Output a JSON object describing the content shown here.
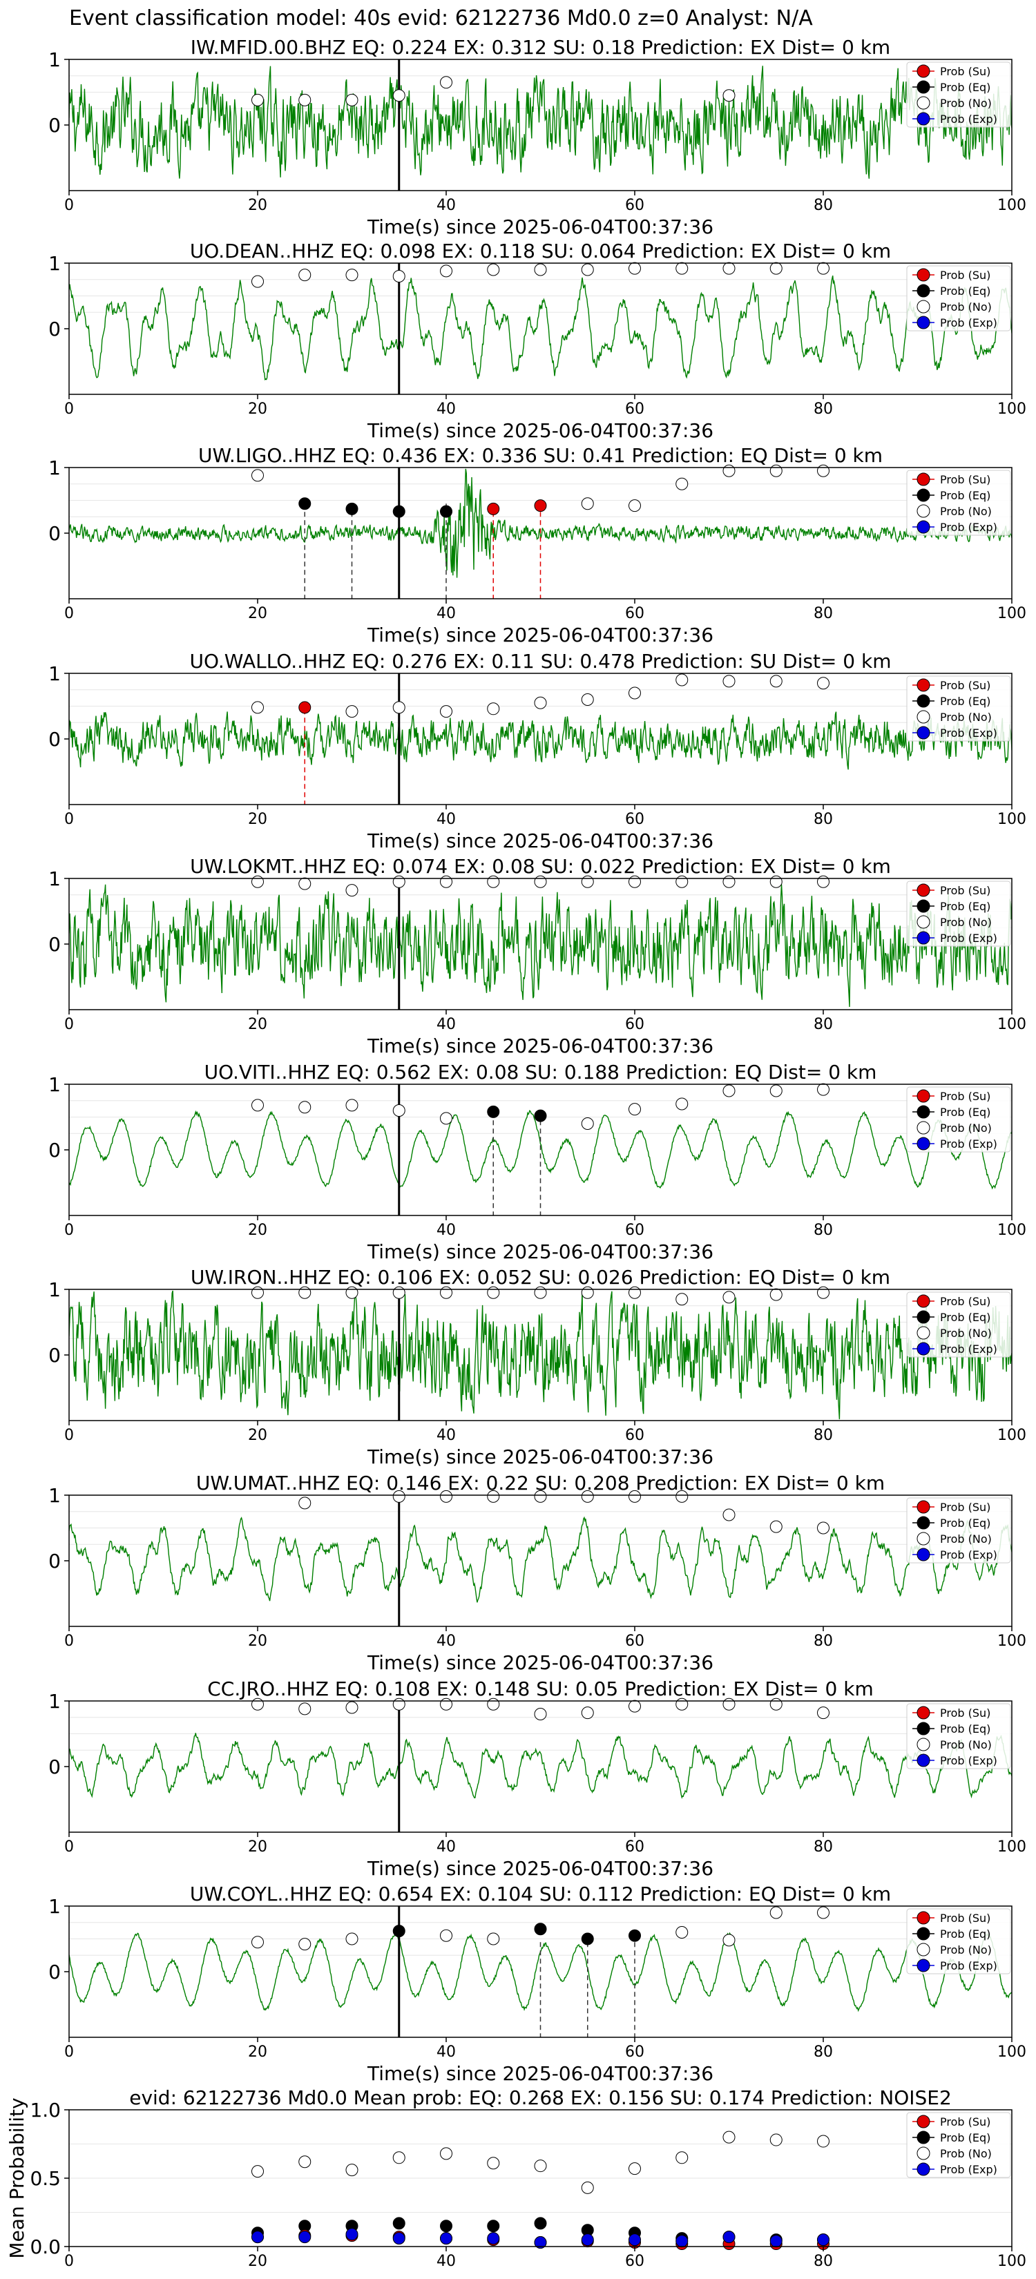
{
  "figure_title": "Event classification model: 40s evid: 62122736 Md0.0 z=0 Analyst: N/A",
  "colors": {
    "trace": "#008000",
    "su": "#e00000",
    "eq": "#000000",
    "no": "#ffffff",
    "exp": "#0000e0",
    "event_line": "#000000"
  },
  "legend": [
    "Prob (Su)",
    "Prob (Eq)",
    "Prob (No)",
    "Prob (Exp)"
  ],
  "x_ticks": [
    "0",
    "20",
    "40",
    "60",
    "80",
    "100"
  ],
  "chart_data": [
    {
      "type": "line",
      "station": "IW.MFID.00.BHZ",
      "title": "IW.MFID.00.BHZ   EQ: 0.224  EX: 0.312  SU: 0.18   Prediction: EX    Dist= 0 km",
      "xlabel": "Time(s) since 2025-06-04T00:37:36",
      "xlim": [
        0,
        100
      ],
      "ylim": [
        -1,
        1
      ],
      "y_ticks": [
        "1",
        "0"
      ],
      "amp": 0.55,
      "style": "noisy",
      "event_time": 35,
      "series": [
        {
          "name": "Prob (No)",
          "x": [
            20,
            25,
            30,
            35,
            40,
            70
          ],
          "y": [
            0.38,
            0.38,
            0.38,
            0.45,
            0.65,
            0.45
          ]
        }
      ],
      "eq_marks": [],
      "su_marks": []
    },
    {
      "type": "line",
      "station": "UO.DEAN..HHZ",
      "title": "UO.DEAN..HHZ   EQ: 0.098  EX: 0.118  SU: 0.064   Prediction: EX    Dist= 0 km",
      "xlabel": "Time(s) since 2025-06-04T00:37:36",
      "xlim": [
        0,
        100
      ],
      "ylim": [
        -1,
        1
      ],
      "y_ticks": [
        "1",
        "0"
      ],
      "amp": 0.75,
      "style": "wave",
      "event_time": 35,
      "series": [
        {
          "name": "Prob (No)",
          "x": [
            20,
            25,
            30,
            35,
            40,
            45,
            50,
            55,
            60,
            65,
            70,
            75,
            80
          ],
          "y": [
            0.72,
            0.82,
            0.82,
            0.8,
            0.88,
            0.9,
            0.9,
            0.9,
            0.92,
            0.92,
            0.92,
            0.92,
            0.92
          ]
        }
      ],
      "eq_marks": [],
      "su_marks": []
    },
    {
      "type": "line",
      "station": "UW.LIGO..HHZ",
      "title": "UW.LIGO..HHZ   EQ: 0.436  EX: 0.336  SU: 0.41   Prediction: EQ    Dist= 0 km",
      "xlabel": "Time(s) since 2025-06-04T00:37:36",
      "xlim": [
        0,
        100
      ],
      "ylim": [
        -1,
        1
      ],
      "y_ticks": [
        "1",
        "0"
      ],
      "amp": 0.2,
      "style": "burst",
      "event_time": 35,
      "series": [
        {
          "name": "Prob (No)",
          "x": [
            20,
            55,
            60,
            65,
            70,
            75,
            80
          ],
          "y": [
            0.88,
            0.45,
            0.42,
            0.75,
            0.95,
            0.95,
            0.95
          ]
        },
        {
          "name": "Prob (Eq)",
          "x": [
            25,
            30,
            35,
            40
          ],
          "y": [
            0.45,
            0.37,
            0.33,
            0.33
          ]
        },
        {
          "name": "Prob (Su)",
          "x": [
            45,
            50
          ],
          "y": [
            0.37,
            0.42
          ]
        }
      ],
      "eq_marks": [
        25,
        30,
        40
      ],
      "su_marks": [
        45,
        50
      ]
    },
    {
      "type": "line",
      "station": "UO.WALLO..HHZ",
      "title": "UO.WALLO..HHZ   EQ: 0.276  EX: 0.11  SU: 0.478   Prediction: SU    Dist= 0 km",
      "xlabel": "Time(s) since 2025-06-04T00:37:36",
      "xlim": [
        0,
        100
      ],
      "ylim": [
        -1,
        1
      ],
      "y_ticks": [
        "1",
        "0"
      ],
      "amp": 0.3,
      "style": "noisy",
      "event_time": 35,
      "series": [
        {
          "name": "Prob (No)",
          "x": [
            20,
            30,
            35,
            40,
            45,
            50,
            55,
            60,
            65,
            70,
            75,
            80
          ],
          "y": [
            0.48,
            0.42,
            0.48,
            0.42,
            0.46,
            0.55,
            0.6,
            0.7,
            0.9,
            0.88,
            0.88,
            0.85
          ]
        },
        {
          "name": "Prob (Su)",
          "x": [
            25
          ],
          "y": [
            0.48
          ]
        }
      ],
      "eq_marks": [],
      "su_marks": [
        25
      ]
    },
    {
      "type": "line",
      "station": "UW.LOKMT..HHZ",
      "title": "UW.LOKMT..HHZ   EQ: 0.074  EX: 0.08  SU: 0.022   Prediction: EX    Dist= 0 km",
      "xlabel": "Time(s) since 2025-06-04T00:37:36",
      "xlim": [
        0,
        100
      ],
      "ylim": [
        -1,
        1
      ],
      "y_ticks": [
        "1",
        "0"
      ],
      "amp": 0.6,
      "style": "noisy",
      "event_time": 35,
      "series": [
        {
          "name": "Prob (No)",
          "x": [
            20,
            25,
            30,
            35,
            40,
            45,
            50,
            55,
            60,
            65,
            70,
            75,
            80
          ],
          "y": [
            0.95,
            0.92,
            0.82,
            0.95,
            0.95,
            0.95,
            0.95,
            0.95,
            0.95,
            0.95,
            0.95,
            0.95,
            0.95
          ]
        }
      ],
      "eq_marks": [],
      "su_marks": []
    },
    {
      "type": "line",
      "station": "UO.VITI..HHZ",
      "title": "UO.VITI..HHZ   EQ: 0.562  EX: 0.08  SU: 0.188   Prediction: EQ    Dist= 0 km",
      "xlabel": "Time(s) since 2025-06-04T00:37:36",
      "xlim": [
        0,
        100
      ],
      "ylim": [
        -1,
        1
      ],
      "y_ticks": [
        "1",
        "0"
      ],
      "amp": 0.65,
      "style": "smooth",
      "event_time": 35,
      "series": [
        {
          "name": "Prob (No)",
          "x": [
            20,
            25,
            30,
            35,
            40,
            55,
            60,
            65,
            70,
            75,
            80
          ],
          "y": [
            0.68,
            0.65,
            0.68,
            0.6,
            0.48,
            0.4,
            0.62,
            0.7,
            0.9,
            0.9,
            0.92
          ]
        },
        {
          "name": "Prob (Eq)",
          "x": [
            45,
            50
          ],
          "y": [
            0.58,
            0.52
          ]
        }
      ],
      "eq_marks": [
        45,
        50
      ],
      "su_marks": []
    },
    {
      "type": "line",
      "station": "UW.IRON..HHZ",
      "title": "UW.IRON..HHZ   EQ: 0.106  EX: 0.052  SU: 0.026   Prediction: EQ    Dist= 0 km",
      "xlabel": "Time(s) since 2025-06-04T00:37:36",
      "xlim": [
        0,
        100
      ],
      "ylim": [
        -1,
        1
      ],
      "y_ticks": [
        "1",
        "0"
      ],
      "amp": 0.65,
      "style": "noisy",
      "event_time": 35,
      "series": [
        {
          "name": "Prob (No)",
          "x": [
            20,
            25,
            30,
            35,
            40,
            45,
            50,
            55,
            60,
            65,
            70,
            75,
            80
          ],
          "y": [
            0.95,
            0.95,
            0.95,
            0.95,
            0.95,
            0.95,
            0.95,
            0.95,
            0.95,
            0.85,
            0.88,
            0.92,
            0.95
          ]
        }
      ],
      "eq_marks": [],
      "su_marks": []
    },
    {
      "type": "line",
      "station": "UW.UMAT..HHZ",
      "title": "UW.UMAT..HHZ   EQ: 0.146  EX: 0.22  SU: 0.208   Prediction: EX    Dist= 0 km",
      "xlabel": "Time(s) since 2025-06-04T00:37:36",
      "xlim": [
        0,
        100
      ],
      "ylim": [
        -1,
        1
      ],
      "y_ticks": [
        "1",
        "0"
      ],
      "amp": 0.6,
      "style": "wave",
      "event_time": 35,
      "series": [
        {
          "name": "Prob (No)",
          "x": [
            25,
            35,
            40,
            45,
            50,
            55,
            60,
            65,
            70,
            75,
            80
          ],
          "y": [
            0.88,
            0.98,
            0.98,
            0.98,
            0.98,
            0.98,
            0.98,
            0.98,
            0.7,
            0.52,
            0.5
          ]
        }
      ],
      "eq_marks": [],
      "su_marks": []
    },
    {
      "type": "line",
      "station": "CC.JRO..HHZ",
      "title": "CC.JRO..HHZ   EQ: 0.108  EX: 0.148  SU: 0.05   Prediction: EX    Dist= 0 km",
      "xlabel": "Time(s) since 2025-06-04T00:37:36",
      "xlim": [
        0,
        100
      ],
      "ylim": [
        -1,
        1
      ],
      "y_ticks": [
        "1",
        "0"
      ],
      "amp": 0.45,
      "style": "wave",
      "event_time": 35,
      "series": [
        {
          "name": "Prob (No)",
          "x": [
            20,
            25,
            30,
            35,
            40,
            45,
            50,
            55,
            60,
            65,
            70,
            75,
            80
          ],
          "y": [
            0.95,
            0.88,
            0.9,
            0.95,
            0.95,
            0.95,
            0.8,
            0.82,
            0.92,
            0.95,
            0.95,
            0.95,
            0.82
          ]
        }
      ],
      "eq_marks": [],
      "su_marks": []
    },
    {
      "type": "line",
      "station": "UW.COYL..HHZ",
      "title": "UW.COYL..HHZ   EQ: 0.654  EX: 0.104  SU: 0.112   Prediction: EQ    Dist= 0 km",
      "xlabel": "Time(s) since 2025-06-04T00:37:36",
      "xlim": [
        0,
        100
      ],
      "ylim": [
        -1,
        1
      ],
      "y_ticks": [
        "1",
        "0"
      ],
      "amp": 0.65,
      "style": "smooth",
      "event_time": 35,
      "series": [
        {
          "name": "Prob (No)",
          "x": [
            20,
            25,
            30,
            40,
            45,
            65,
            70,
            75,
            80
          ],
          "y": [
            0.45,
            0.42,
            0.5,
            0.55,
            0.5,
            0.6,
            0.48,
            0.9,
            0.9
          ]
        },
        {
          "name": "Prob (Eq)",
          "x": [
            35,
            50,
            55,
            60
          ],
          "y": [
            0.62,
            0.65,
            0.5,
            0.55
          ]
        }
      ],
      "eq_marks": [
        50,
        55,
        60
      ],
      "su_marks": []
    },
    {
      "type": "scatter",
      "title": "evid: 62122736  Md0.0   Mean prob:   EQ: 0.268  EX: 0.156  SU: 0.174   Prediction: NOISE2",
      "ylabel": "Mean Probability",
      "xlim": [
        0,
        100
      ],
      "ylim": [
        0,
        1
      ],
      "y_ticks": [
        "1.0",
        "0.5",
        "0.0"
      ],
      "series": [
        {
          "name": "Prob (No)",
          "x": [
            20,
            25,
            30,
            35,
            40,
            45,
            50,
            55,
            60,
            65,
            70,
            75,
            80
          ],
          "y": [
            0.55,
            0.62,
            0.56,
            0.65,
            0.68,
            0.61,
            0.59,
            0.43,
            0.57,
            0.65,
            0.8,
            0.78,
            0.77
          ]
        },
        {
          "name": "Prob (Eq)",
          "x": [
            20,
            25,
            30,
            35,
            40,
            45,
            50,
            55,
            60,
            65,
            70,
            75,
            80
          ],
          "y": [
            0.1,
            0.15,
            0.15,
            0.17,
            0.15,
            0.15,
            0.17,
            0.12,
            0.1,
            0.06,
            0.07,
            0.05,
            0.05
          ]
        },
        {
          "name": "Prob (Su)",
          "x": [
            20,
            25,
            30,
            35,
            40,
            45,
            50,
            55,
            60,
            65,
            70,
            75,
            80
          ],
          "y": [
            0.07,
            0.08,
            0.08,
            0.07,
            0.06,
            0.05,
            0.03,
            0.04,
            0.03,
            0.02,
            0.02,
            0.02,
            0.02
          ]
        },
        {
          "name": "Prob (Exp)",
          "x": [
            20,
            25,
            30,
            35,
            40,
            45,
            50,
            55,
            60,
            65,
            70,
            75,
            80
          ],
          "y": [
            0.07,
            0.07,
            0.09,
            0.06,
            0.06,
            0.06,
            0.03,
            0.05,
            0.05,
            0.04,
            0.07,
            0.04,
            0.05
          ]
        }
      ]
    }
  ]
}
